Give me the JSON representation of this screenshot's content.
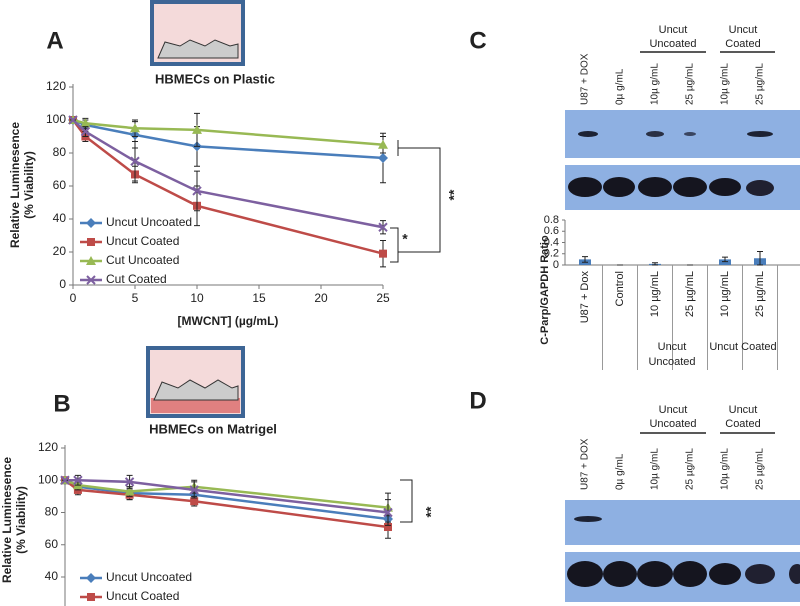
{
  "panel_labels": [
    "A",
    "B",
    "C",
    "D"
  ],
  "chart_data": [
    {
      "type": "line",
      "title": "HBMECs on Plastic",
      "ylabel": [
        "Relative Luminesence",
        "(% Viability)"
      ],
      "xlabel": "[MWCNT] (µg/mL)",
      "x": [
        0,
        1,
        5,
        10,
        25
      ],
      "xlim": [
        0,
        25
      ],
      "xticks": [
        0,
        5,
        10,
        15,
        20,
        25
      ],
      "ylim": [
        0,
        120
      ],
      "yticks": [
        0,
        20,
        40,
        60,
        80,
        100,
        120
      ],
      "legend": "lower left",
      "annotations": [
        "**",
        "*"
      ],
      "series": [
        {
          "name": "Uncut Uncoated",
          "color": "#4a7ebb",
          "marker": "diamond",
          "values": [
            100,
            97,
            91,
            84,
            77
          ],
          "errors": [
            0,
            3,
            8,
            12,
            15
          ]
        },
        {
          "name": "Uncut Coated",
          "color": "#be4b48",
          "marker": "square",
          "values": [
            100,
            90,
            67,
            48,
            19
          ],
          "errors": [
            0,
            3,
            5,
            12,
            8
          ]
        },
        {
          "name": "Cut Uncoated",
          "color": "#98b954",
          "marker": "triangle",
          "values": [
            100,
            98,
            95,
            94,
            85
          ],
          "errors": [
            0,
            3,
            5,
            10,
            5
          ]
        },
        {
          "name": "Cut Coated",
          "color": "#7d60a0",
          "marker": "cross",
          "values": [
            100,
            93,
            75,
            57,
            35
          ],
          "errors": [
            0,
            3,
            12,
            12,
            4
          ]
        }
      ]
    },
    {
      "type": "line",
      "title": "HBMECs on Matrigel",
      "ylabel": [
        "Relative Luminesence",
        "(% Viability)"
      ],
      "x": [
        0,
        1,
        5,
        10,
        25
      ],
      "xlim": [
        0,
        25
      ],
      "ylim": [
        40,
        120
      ],
      "yticks": [
        40,
        60,
        80,
        100,
        120
      ],
      "legend": "lower left",
      "annotations": [
        "**"
      ],
      "series": [
        {
          "name": "Uncut Uncoated",
          "color": "#4a7ebb",
          "marker": "diamond",
          "values": [
            100,
            96,
            92,
            91,
            76
          ],
          "errors": [
            0,
            3,
            4,
            5,
            6
          ]
        },
        {
          "name": "Uncut Coated",
          "color": "#be4b48",
          "marker": "square",
          "values": [
            100,
            94,
            91,
            87,
            71
          ],
          "errors": [
            0,
            3,
            3,
            3,
            7
          ]
        },
        {
          "color": "#98b954",
          "marker": "triangle",
          "values": [
            100,
            97,
            93,
            96,
            83
          ],
          "errors": [
            0,
            3,
            3,
            4,
            9
          ]
        },
        {
          "color": "#7d60a0",
          "marker": "cross",
          "values": [
            100,
            100,
            99,
            94,
            80
          ],
          "errors": [
            0,
            3,
            4,
            5,
            8
          ]
        }
      ]
    },
    {
      "type": "bar",
      "ylabel": "C-Parp/GAPDH Ratio",
      "color": "#4a7ebb",
      "categories": [
        "U87 + Dox",
        "Control",
        "10 µg/mL",
        "25 µg/mL",
        "10 µg/mL",
        "25 µg/mL"
      ],
      "values": [
        0.1,
        0,
        0.02,
        0,
        0.1,
        0.12
      ],
      "errors": [
        0.05,
        0,
        0.02,
        0,
        0.04,
        0.12
      ],
      "ylim": [
        0,
        0.8
      ],
      "yticks": [
        0,
        0.2,
        0.4,
        0.6,
        0.8
      ],
      "groups": [
        [
          "Uncut",
          "Uncoated"
        ],
        [
          "Uncut Coated"
        ]
      ]
    }
  ],
  "blots": [
    {
      "lanes": [
        "U87 + DOX",
        "0µ g/mL",
        "10µ g/mL",
        "25 µg/mL",
        "10µ g/mL",
        "25 µg/mL"
      ],
      "groups": [
        [
          "Uncut",
          "Uncoated"
        ],
        [
          "Uncut",
          "Coated"
        ]
      ]
    },
    {
      "lanes": [
        "U87 + DOX",
        "0µ g/mL",
        "10µ g/mL",
        "25 µg/mL",
        "10µ g/mL",
        "25 µg/mL"
      ],
      "groups": [
        [
          "Uncut",
          "Uncoated"
        ],
        [
          "Uncut",
          "Coated"
        ]
      ]
    }
  ]
}
